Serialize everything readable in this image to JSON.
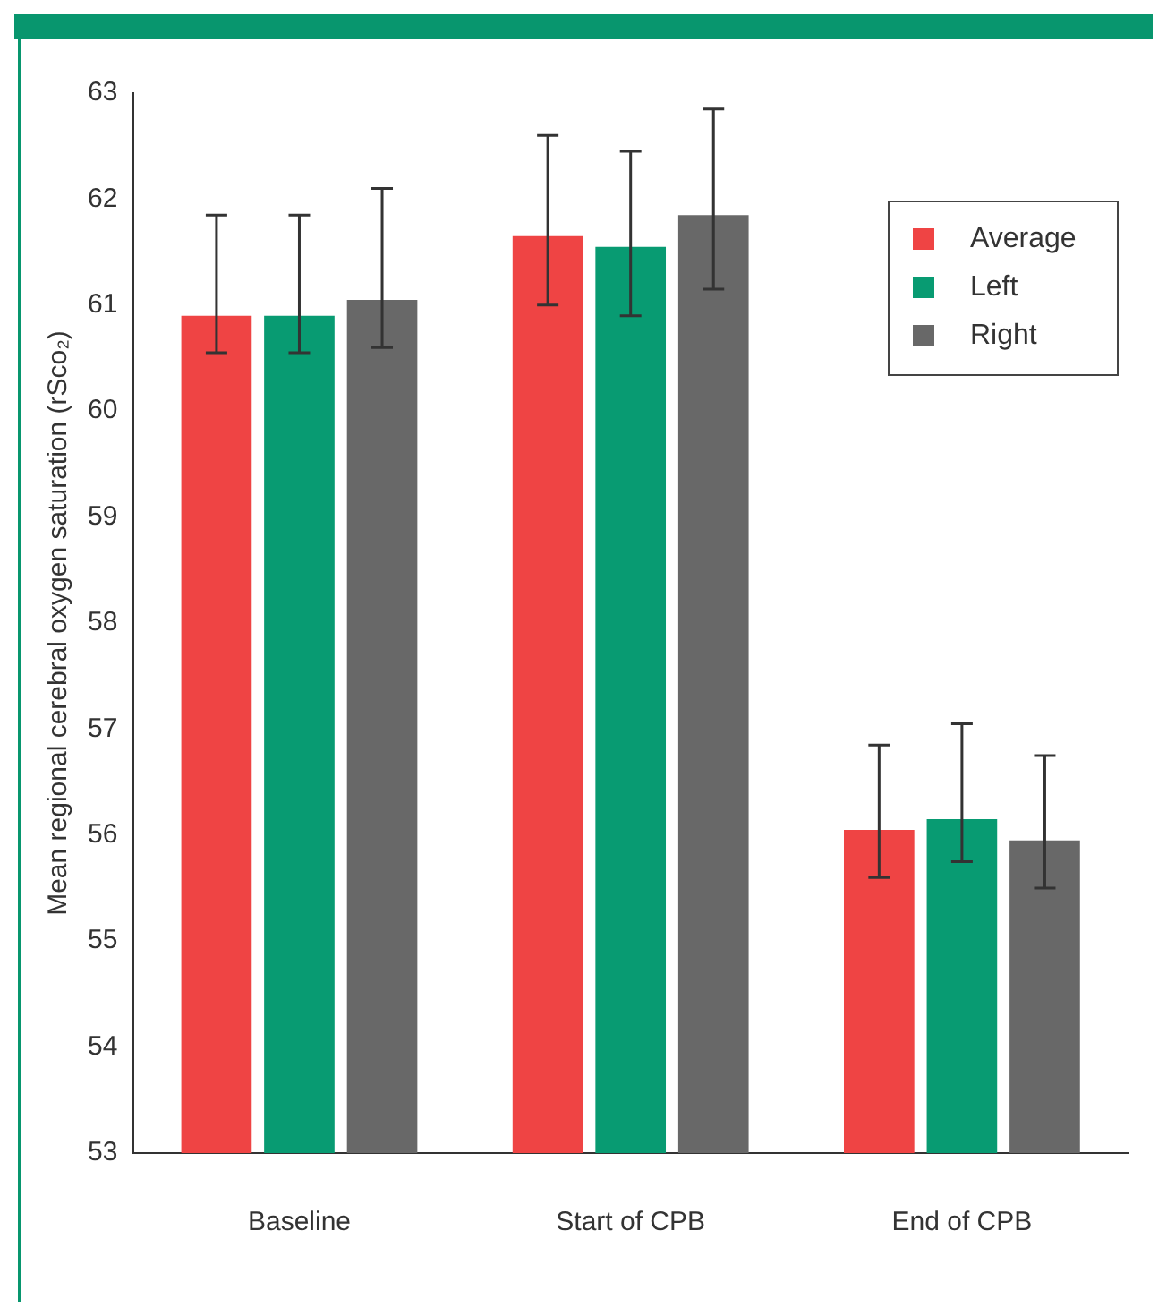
{
  "chart_data": {
    "type": "bar",
    "ylabel": "Mean regional cerebral oxygen saturation (rSco₂)",
    "categories": [
      "Baseline",
      "Start of CPB",
      "End of CPB"
    ],
    "series": [
      {
        "name": "Average",
        "color": "#ef4444",
        "values": [
          60.9,
          61.65,
          56.05
        ],
        "errors": [
          [
            60.55,
            61.85
          ],
          [
            61.0,
            62.6
          ],
          [
            55.6,
            56.85
          ]
        ]
      },
      {
        "name": "Left",
        "color": "#089b72",
        "values": [
          60.9,
          61.55,
          56.15
        ],
        "errors": [
          [
            60.55,
            61.85
          ],
          [
            60.9,
            62.45
          ],
          [
            55.75,
            57.05
          ]
        ]
      },
      {
        "name": "Right",
        "color": "#686868",
        "values": [
          61.05,
          61.85,
          55.95
        ],
        "errors": [
          [
            60.6,
            62.1
          ],
          [
            61.15,
            62.85
          ],
          [
            55.5,
            56.75
          ]
        ]
      }
    ],
    "ylim": [
      53,
      63
    ],
    "yticks": [
      53,
      54,
      55,
      56,
      57,
      58,
      59,
      60,
      61,
      62,
      63
    ],
    "grid": false,
    "legend": "top right"
  }
}
